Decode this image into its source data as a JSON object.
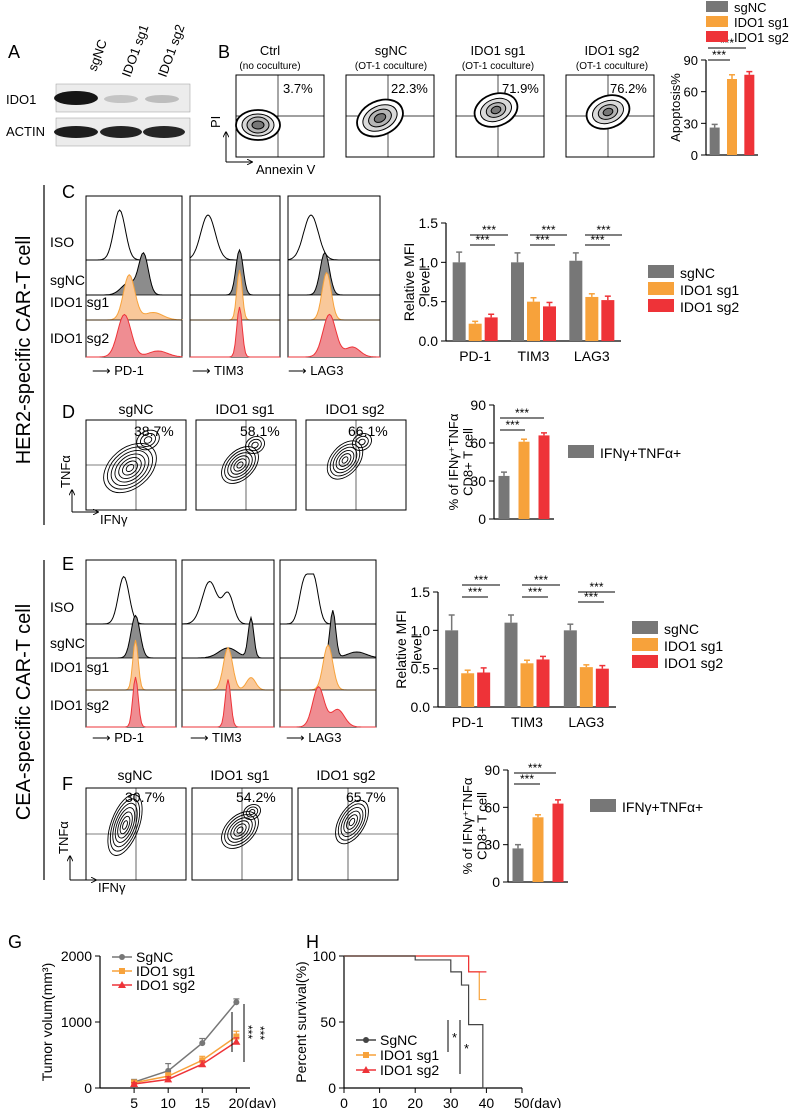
{
  "colors": {
    "sgNC": "#777777",
    "sg1": "#f7a23b",
    "sg2": "#ee3338",
    "iso": "#000000",
    "sgnc_fill": "#8c8c8c",
    "sg1_fill": "#f9c89a",
    "sg2_fill": "#ef8d92"
  },
  "panel_letters": {
    "A": "A",
    "B": "B",
    "C": "C",
    "D": "D",
    "E": "E",
    "F": "F",
    "G": "G",
    "H": "H"
  },
  "side_labels": {
    "her2": "HER2-specific CAR-T cell",
    "cea": "CEA-specific CAR-T cell"
  },
  "panelA": {
    "lanes": [
      "sgNC",
      "IDO1 sg1",
      "IDO1 sg2"
    ],
    "rows": [
      "IDO1",
      "ACTIN"
    ]
  },
  "panelB": {
    "plots": [
      {
        "title": "Ctrl",
        "subtitle": "(no coculture)",
        "pct": "3.7%"
      },
      {
        "title": "sgNC",
        "subtitle": "(OT-1 coculture)",
        "pct": "22.3%"
      },
      {
        "title": "IDO1 sg1",
        "subtitle": "(OT-1 coculture)",
        "pct": "71.9%"
      },
      {
        "title": "IDO1 sg2",
        "subtitle": "(OT-1 coculture)",
        "pct": "76.2%"
      }
    ],
    "y_axis": "PI",
    "x_axis": "Annexin V"
  },
  "panelC": {
    "rows": [
      "ISO",
      "sgNC",
      "IDO1 sg1",
      "IDO1 sg2"
    ],
    "markers": [
      "PD-1",
      "TIM3",
      "LAG3"
    ]
  },
  "panelD": {
    "plots": [
      {
        "title": "sgNC",
        "pct": "38.7%"
      },
      {
        "title": "IDO1 sg1",
        "pct": "58.1%"
      },
      {
        "title": "IDO1 sg2",
        "pct": "66.1%"
      }
    ],
    "y_axis": "TNFα",
    "x_axis": "IFNγ"
  },
  "panelE": {
    "rows": [
      "ISO",
      "sgNC",
      "IDO1 sg1",
      "IDO1 sg2"
    ],
    "markers": [
      "PD-1",
      "TIM3",
      "LAG3"
    ]
  },
  "panelF": {
    "plots": [
      {
        "title": "sgNC",
        "pct": "30.7%"
      },
      {
        "title": "IDO1 sg1",
        "pct": "54.2%"
      },
      {
        "title": "IDO1 sg2",
        "pct": "65.7%"
      }
    ],
    "y_axis": "TNFα",
    "x_axis": "IFNγ"
  },
  "chart_data": [
    {
      "id": "B-bar",
      "type": "bar",
      "title": "",
      "ylabel": "Apoptosis%",
      "categories": [
        "sgNC",
        "IDO1 sg1",
        "IDO1 sg2"
      ],
      "series": [
        {
          "name": "Apoptosis%",
          "values": [
            26,
            72,
            76
          ],
          "errors": [
            3,
            4,
            3
          ]
        }
      ],
      "ylim": [
        0,
        90
      ],
      "yticks": [
        0,
        30,
        60,
        90
      ],
      "legend": [
        "sgNC",
        "IDO1 sg1",
        "IDO1 sg2"
      ],
      "significance": [
        "***",
        "***"
      ]
    },
    {
      "id": "C-bar",
      "type": "bar",
      "ylabel": "Relative MFI level",
      "categories": [
        "PD-1",
        "TIM3",
        "LAG3"
      ],
      "series": [
        {
          "name": "sgNC",
          "values": [
            1.0,
            1.0,
            1.02
          ],
          "errors": [
            0.13,
            0.12,
            0.1
          ]
        },
        {
          "name": "IDO1 sg1",
          "values": [
            0.22,
            0.5,
            0.56
          ],
          "errors": [
            0.03,
            0.05,
            0.04
          ]
        },
        {
          "name": "IDO1 sg2",
          "values": [
            0.3,
            0.44,
            0.52
          ],
          "errors": [
            0.04,
            0.05,
            0.05
          ]
        }
      ],
      "ylim": [
        0,
        1.5
      ],
      "yticks": [
        "0.0",
        "0.5",
        "1.0",
        "1.5"
      ],
      "significance": [
        "***",
        "***"
      ]
    },
    {
      "id": "D-bar",
      "type": "bar",
      "ylabel": "% of IFNγ⁺TNFα CD8+ T cell",
      "categories": [
        "sgNC",
        "IDO1 sg1",
        "IDO1 sg2"
      ],
      "series": [
        {
          "name": "IFNγ+TNFα+",
          "values": [
            34,
            61,
            66
          ],
          "errors": [
            3,
            2,
            2
          ]
        }
      ],
      "ylim": [
        0,
        90
      ],
      "yticks": [
        0,
        30,
        60,
        90
      ],
      "significance": [
        "***",
        "***"
      ]
    },
    {
      "id": "E-bar",
      "type": "bar",
      "ylabel": "Relative MFI level",
      "categories": [
        "PD-1",
        "TIM3",
        "LAG3"
      ],
      "series": [
        {
          "name": "sgNC",
          "values": [
            1.0,
            1.1,
            1.0
          ],
          "errors": [
            0.2,
            0.1,
            0.08
          ]
        },
        {
          "name": "IDO1 sg1",
          "values": [
            0.44,
            0.57,
            0.52
          ],
          "errors": [
            0.04,
            0.04,
            0.03
          ]
        },
        {
          "name": "IDO1 sg2",
          "values": [
            0.45,
            0.62,
            0.5
          ],
          "errors": [
            0.06,
            0.04,
            0.04
          ]
        }
      ],
      "ylim": [
        0,
        1.5
      ],
      "yticks": [
        "0.0",
        "0.5",
        "1.0",
        "1.5"
      ],
      "significance": [
        "***",
        "***"
      ]
    },
    {
      "id": "F-bar",
      "type": "bar",
      "ylabel": "% of IFNγ⁺TNFα CD8+ T cell",
      "categories": [
        "sgNC",
        "IDO1 sg1",
        "IDO1 sg2"
      ],
      "series": [
        {
          "name": "IFNγ+TNFα+",
          "values": [
            27,
            52,
            63
          ],
          "errors": [
            3,
            2,
            3
          ]
        }
      ],
      "ylim": [
        0,
        90
      ],
      "yticks": [
        0,
        30,
        60,
        90
      ],
      "significance": [
        "***",
        "***"
      ]
    },
    {
      "id": "G-line",
      "type": "line",
      "ylabel": "Tumor volum(mm³)",
      "xlabel": "(day)",
      "x": [
        5,
        10,
        15,
        20
      ],
      "series": [
        {
          "name": "SgNC",
          "values": [
            90,
            260,
            680,
            1300
          ],
          "errors": [
            40,
            110,
            70,
            50
          ]
        },
        {
          "name": "IDO1 sg1",
          "values": [
            80,
            180,
            420,
            780
          ],
          "errors": [
            40,
            50,
            60,
            80
          ]
        },
        {
          "name": "IDO1 sg2",
          "values": [
            60,
            130,
            360,
            700
          ],
          "errors": [
            20,
            40,
            50,
            60
          ]
        }
      ],
      "ylim": [
        0,
        2000
      ],
      "yticks": [
        0,
        1000,
        2000
      ],
      "significance": [
        "***",
        "***"
      ]
    },
    {
      "id": "H-survival",
      "type": "line",
      "ylabel": "Percent survival(%)",
      "xlabel": "(day)",
      "series": [
        {
          "name": "SgNC",
          "steps": [
            [
              0,
              100
            ],
            [
              20,
              100
            ],
            [
              20,
              97
            ],
            [
              30,
              97
            ],
            [
              30,
              88
            ],
            [
              33,
              88
            ],
            [
              33,
              78
            ],
            [
              35,
              78
            ],
            [
              35,
              48
            ],
            [
              39,
              48
            ],
            [
              39,
              0
            ],
            [
              40,
              0
            ]
          ]
        },
        {
          "name": "IDO1 sg1",
          "steps": [
            [
              0,
              100
            ],
            [
              35,
              100
            ],
            [
              35,
              88
            ],
            [
              38,
              88
            ],
            [
              38,
              67
            ],
            [
              40,
              67
            ]
          ]
        },
        {
          "name": "IDO1 sg2",
          "steps": [
            [
              0,
              100
            ],
            [
              35,
              100
            ],
            [
              35,
              88
            ],
            [
              40,
              88
            ]
          ]
        }
      ],
      "xlim": [
        0,
        50
      ],
      "xticks": [
        0,
        10,
        20,
        30,
        40
      ],
      "x_last_tick": "50",
      "ylim": [
        0,
        100
      ],
      "yticks": [
        0,
        50,
        100
      ],
      "significance": [
        "*",
        "*"
      ]
    }
  ]
}
